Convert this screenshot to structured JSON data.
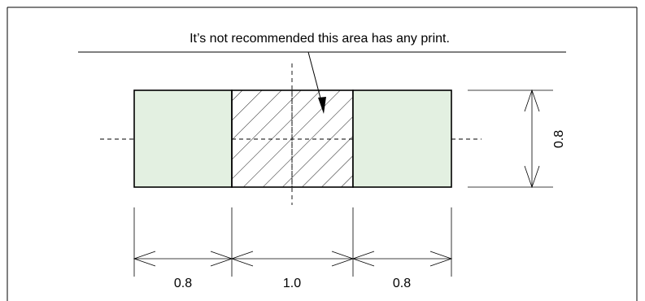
{
  "note_text": "It’s not recommended this area has any print.",
  "dimensions": {
    "left_pad": "0.8",
    "center_area": "1.0",
    "right_pad": "0.8",
    "height": "0.8"
  },
  "colors": {
    "pad_fill": "#e3f0e1",
    "line": "#000000",
    "background": "#ffffff"
  }
}
